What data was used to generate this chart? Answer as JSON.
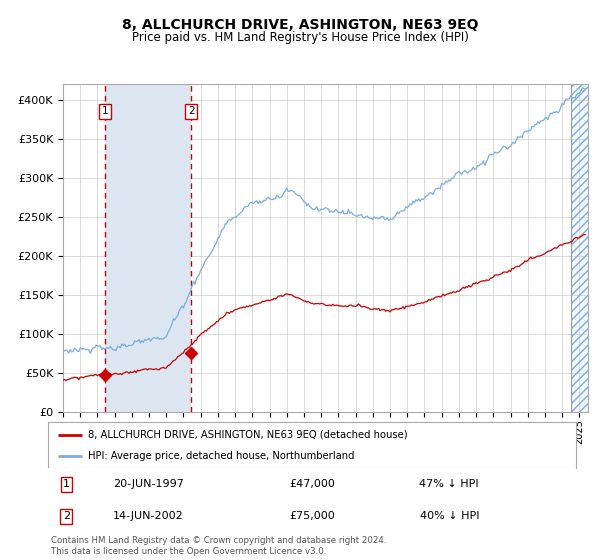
{
  "title": "8, ALLCHURCH DRIVE, ASHINGTON, NE63 9EQ",
  "subtitle": "Price paid vs. HM Land Registry's House Price Index (HPI)",
  "legend_label_red": "8, ALLCHURCH DRIVE, ASHINGTON, NE63 9EQ (detached house)",
  "legend_label_blue": "HPI: Average price, detached house, Northumberland",
  "footnote": "Contains HM Land Registry data © Crown copyright and database right 2024.\nThis data is licensed under the Open Government Licence v3.0.",
  "sale1_date_num": 1997.46,
  "sale1_price": 47000,
  "sale1_label": "20-JUN-1997",
  "sale1_pct": "47% ↓ HPI",
  "sale2_date_num": 2002.45,
  "sale2_price": 75000,
  "sale2_label": "14-JUN-2002",
  "sale2_pct": "40% ↓ HPI",
  "xmin": 1995.0,
  "xmax": 2025.5,
  "ymin": 0,
  "ymax": 420000,
  "yticks": [
    0,
    50000,
    100000,
    150000,
    200000,
    250000,
    300000,
    350000,
    400000
  ],
  "ytick_labels": [
    "£0",
    "£50K",
    "£100K",
    "£150K",
    "£200K",
    "£250K",
    "£300K",
    "£350K",
    "£400K"
  ],
  "blue_color": "#7aade0",
  "red_color": "#cc0000",
  "hatch_color": "#7aade0",
  "bg_color": "#ffffff",
  "grid_color": "#cccccc",
  "shaded_region_color": "#dce6f1",
  "dashed_line_color": "#cc0000",
  "hatch_end": 2025.5,
  "hatch_start": 2024.5
}
